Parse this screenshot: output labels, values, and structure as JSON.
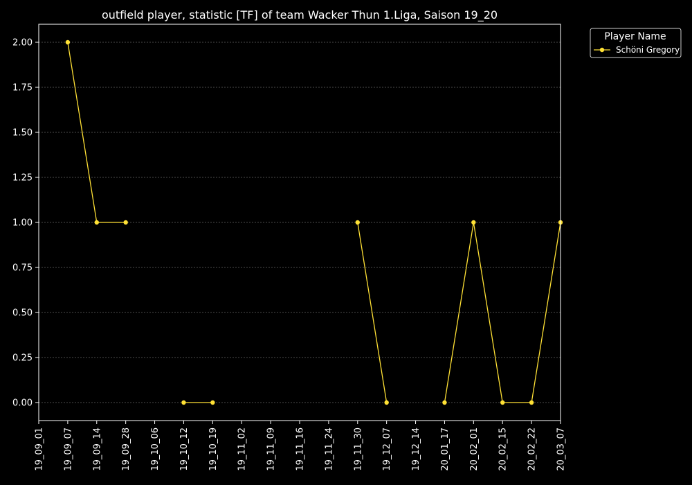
{
  "chart_data": {
    "type": "line",
    "title": "outfield player, statistic [TF] of team Wacker Thun 1.Liga, Saison 19_20",
    "xlabel": "",
    "ylabel": "",
    "categories": [
      "19_09_01",
      "19_09_07",
      "19_09_14",
      "19_09_28",
      "19_10_06",
      "19_10_12",
      "19_10_19",
      "19_11_02",
      "19_11_09",
      "19_11_16",
      "19_11_24",
      "19_11_30",
      "19_12_07",
      "19_12_14",
      "20_01_17",
      "20_02_01",
      "20_02_15",
      "20_02_22",
      "20_03_07"
    ],
    "ylim": [
      -0.1,
      2.1
    ],
    "yticks": [
      "0.00",
      "0.25",
      "0.50",
      "0.75",
      "1.00",
      "1.25",
      "1.50",
      "1.75",
      "2.00"
    ],
    "grid": "horizontal dashed",
    "legend": {
      "title": "Player Name",
      "placement": "outside top-right"
    },
    "series": [
      {
        "name": "Schöni Gregory",
        "color": "#ffe135",
        "values": [
          null,
          2,
          1,
          1,
          null,
          0,
          0,
          null,
          null,
          null,
          null,
          1,
          0,
          null,
          0,
          1,
          0,
          0,
          1
        ]
      }
    ]
  },
  "colors": {
    "background": "#000000",
    "axes": "#ffffff",
    "grid": "#666666"
  }
}
